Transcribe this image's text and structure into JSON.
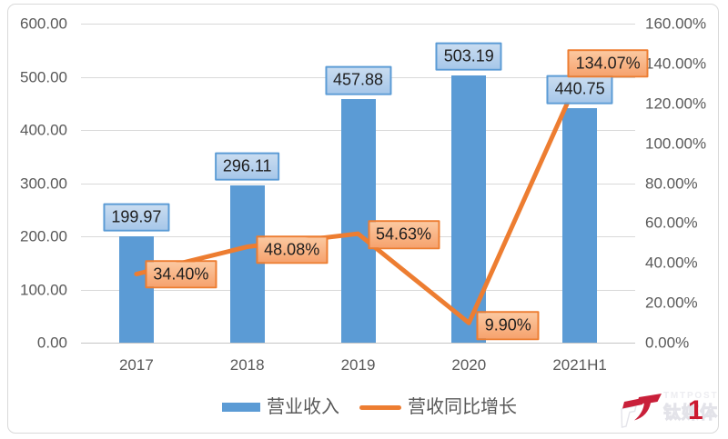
{
  "chart_data": {
    "type": "bar",
    "subtype": "combo-bar-line",
    "categories": [
      "2017",
      "2018",
      "2019",
      "2020",
      "2021H1"
    ],
    "series": [
      {
        "name": "营业收入",
        "type": "bar",
        "axis": "left",
        "color": "#5B9BD5",
        "values": [
          199.97,
          296.11,
          457.88,
          503.19,
          440.75
        ],
        "data_labels": [
          "199.97",
          "296.11",
          "457.88",
          "503.19",
          "440.75"
        ],
        "label_fill_top": "#C9DCF0",
        "label_fill_bottom": "#A7C7E9",
        "label_border": "#5B9BD5"
      },
      {
        "name": "营收同比增长",
        "type": "line",
        "axis": "right",
        "color": "#ED7D31",
        "values": [
          34.4,
          48.08,
          54.63,
          9.9,
          134.07
        ],
        "data_labels": [
          "34.40%",
          "48.08%",
          "54.63%",
          "9.90%",
          "134.07%"
        ],
        "label_fill_top": "#FBC8A0",
        "label_fill_bottom": "#F6A26E",
        "label_border": "#ED7D31"
      }
    ],
    "y_axis_left": {
      "min": 0,
      "max": 600,
      "step": 100,
      "tick_labels": [
        "0.00",
        "100.00",
        "200.00",
        "300.00",
        "400.00",
        "500.00",
        "600.00"
      ]
    },
    "y_axis_right": {
      "min": 0,
      "max": 160,
      "step": 20,
      "tick_labels": [
        "0.00%",
        "20.00%",
        "40.00%",
        "60.00%",
        "80.00%",
        "100.00%",
        "120.00%",
        "140.00%",
        "160.00%"
      ]
    },
    "grid": "horizontal",
    "legend_position": "bottom"
  },
  "watermark": {
    "brand_en": "TMTPOST",
    "brand_cn": "钛媒体",
    "page_number": "1"
  },
  "theme": {
    "background": "#FFFFFF",
    "frame_border": "#D9D9D9",
    "gridline": "#D9D9D9",
    "axis_line": "#C6C6C6",
    "tick_text": "#595959",
    "watermark_red": "#C9203A",
    "watermark_gray": "#E9E9EE"
  }
}
